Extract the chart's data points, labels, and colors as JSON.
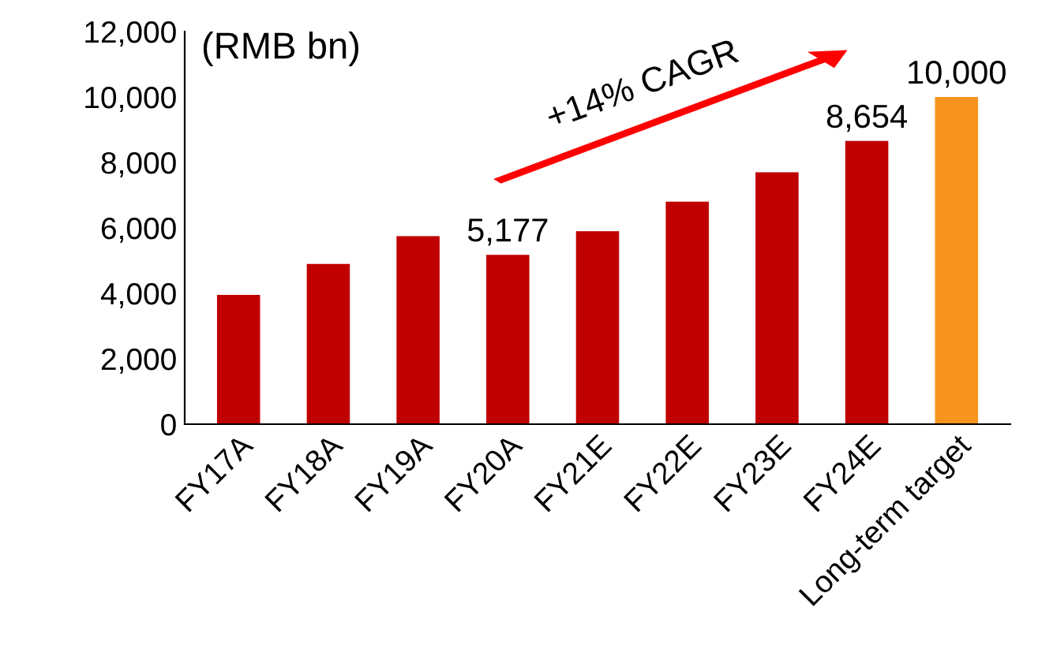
{
  "chart_data": {
    "type": "bar",
    "ylabel": "(RMB bn)",
    "categories": [
      "FY17A",
      "FY18A",
      "FY19A",
      "FY20A",
      "FY21E",
      "FY22E",
      "FY23E",
      "FY24E",
      "Long-term target"
    ],
    "values": [
      3950,
      4900,
      5750,
      5177,
      5900,
      6800,
      7700,
      8654,
      10000
    ],
    "colors": [
      "#c00000",
      "#c00000",
      "#c00000",
      "#c00000",
      "#c00000",
      "#c00000",
      "#c00000",
      "#c00000",
      "#f7941d"
    ],
    "value_labels": [
      null,
      null,
      null,
      "5,177",
      null,
      null,
      null,
      "8,654",
      "10,000"
    ],
    "annotations": [
      "+14% CAGR"
    ],
    "ylim": [
      0,
      12000
    ],
    "yticks": [
      0,
      {
        "value": 2000,
        "label": "2,000"
      },
      {
        "value": 4000,
        "label": "4,000"
      },
      {
        "value": 6000,
        "label": "6,000"
      },
      {
        "value": 8000,
        "label": "8,000"
      },
      {
        "value": 10000,
        "label": "10,000"
      },
      {
        "value": 12000,
        "label": "12,000"
      }
    ],
    "grid": false,
    "legend": false
  }
}
